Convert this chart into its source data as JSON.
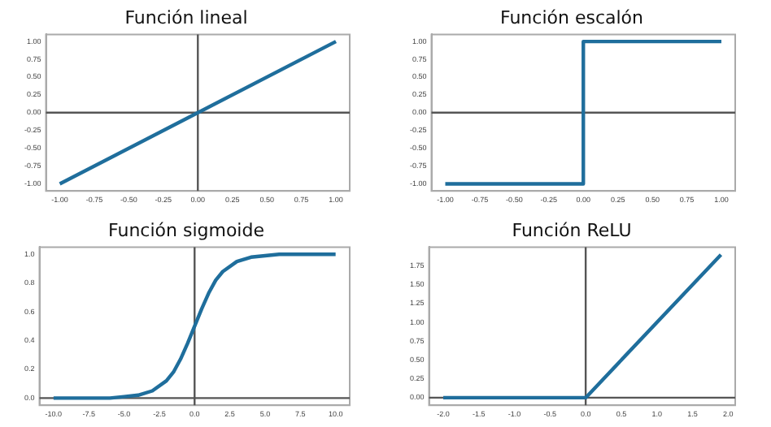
{
  "chart_data": [
    {
      "type": "line",
      "title": "Función lineal",
      "x": [
        -1,
        1
      ],
      "values": [
        -1,
        1
      ],
      "color": "#1f6e9c",
      "xlim": [
        -1.1,
        1.1
      ],
      "ylim": [
        -1.1,
        1.1
      ],
      "xticks": [
        {
          "value": -1,
          "label": "-1.00"
        },
        {
          "value": -0.75,
          "label": "-0.75"
        },
        {
          "value": -0.5,
          "label": "-0.50"
        },
        {
          "value": -0.25,
          "label": "-0.25"
        },
        {
          "value": 0,
          "label": "0.00"
        },
        {
          "value": 0.25,
          "label": "0.25"
        },
        {
          "value": 0.5,
          "label": "0.50"
        },
        {
          "value": 0.75,
          "label": "0.75"
        },
        {
          "value": 1,
          "label": "1.00"
        }
      ],
      "yticks": [
        {
          "value": -1,
          "label": "-1.00"
        },
        {
          "value": -0.75,
          "label": "-0.75"
        },
        {
          "value": -0.5,
          "label": "-0.50"
        },
        {
          "value": -0.25,
          "label": "-0.25"
        },
        {
          "value": 0,
          "label": "0.00"
        },
        {
          "value": 0.25,
          "label": "0.25"
        },
        {
          "value": 0.5,
          "label": "0.50"
        },
        {
          "value": 0.75,
          "label": "0.75"
        },
        {
          "value": 1,
          "label": "1.00"
        }
      ],
      "ref_lines": [
        {
          "axis": "x",
          "value": 0,
          "color": "#555555"
        },
        {
          "axis": "y",
          "value": 0,
          "color": "#555555"
        }
      ]
    },
    {
      "type": "line",
      "title": "Función escalón",
      "x": [
        -1,
        0,
        0,
        1
      ],
      "values": [
        -1,
        -1,
        1,
        1
      ],
      "color": "#1f6e9c",
      "xlim": [
        -1.1,
        1.1
      ],
      "ylim": [
        -1.1,
        1.1
      ],
      "xticks": [
        {
          "value": -1,
          "label": "-1.00"
        },
        {
          "value": -0.75,
          "label": "-0.75"
        },
        {
          "value": -0.5,
          "label": "-0.50"
        },
        {
          "value": -0.25,
          "label": "-0.25"
        },
        {
          "value": 0,
          "label": "0.00"
        },
        {
          "value": 0.25,
          "label": "0.25"
        },
        {
          "value": 0.5,
          "label": "0.50"
        },
        {
          "value": 0.75,
          "label": "0.75"
        },
        {
          "value": 1,
          "label": "1.00"
        }
      ],
      "yticks": [
        {
          "value": -1,
          "label": "-1.00"
        },
        {
          "value": -0.75,
          "label": "-0.75"
        },
        {
          "value": -0.5,
          "label": "-0.50"
        },
        {
          "value": -0.25,
          "label": "-0.25"
        },
        {
          "value": 0,
          "label": "0.00"
        },
        {
          "value": 0.25,
          "label": "0.25"
        },
        {
          "value": 0.5,
          "label": "0.50"
        },
        {
          "value": 0.75,
          "label": "0.75"
        },
        {
          "value": 1,
          "label": "1.00"
        }
      ],
      "ref_lines": [
        {
          "axis": "y",
          "value": 0,
          "color": "#555555"
        }
      ]
    },
    {
      "type": "line",
      "title": "Función sigmoide",
      "x": [
        -10,
        -8,
        -6,
        -5,
        -4,
        -3,
        -2,
        -1.5,
        -1,
        -0.5,
        0,
        0.5,
        1,
        1.5,
        2,
        3,
        4,
        5,
        6,
        8,
        10
      ],
      "values": [
        0,
        0,
        0,
        0.01,
        0.02,
        0.05,
        0.12,
        0.18,
        0.27,
        0.38,
        0.5,
        0.62,
        0.73,
        0.82,
        0.88,
        0.95,
        0.98,
        0.99,
        1,
        1,
        1
      ],
      "color": "#1f6e9c",
      "xlim": [
        -11,
        11
      ],
      "ylim": [
        -0.05,
        1.05
      ],
      "xticks": [
        {
          "value": -10,
          "label": "-10.0"
        },
        {
          "value": -7.5,
          "label": "-7.5"
        },
        {
          "value": -5,
          "label": "-5.0"
        },
        {
          "value": -2.5,
          "label": "-2.5"
        },
        {
          "value": 0,
          "label": "0.0"
        },
        {
          "value": 2.5,
          "label": "2.5"
        },
        {
          "value": 5,
          "label": "5.0"
        },
        {
          "value": 7.5,
          "label": "7.5"
        },
        {
          "value": 10,
          "label": "10.0"
        }
      ],
      "yticks": [
        {
          "value": 0,
          "label": "0.0"
        },
        {
          "value": 0.2,
          "label": "0.2"
        },
        {
          "value": 0.4,
          "label": "0.4"
        },
        {
          "value": 0.6,
          "label": "0.6"
        },
        {
          "value": 0.8,
          "label": "0.8"
        },
        {
          "value": 1,
          "label": "1.0"
        }
      ],
      "ref_lines": [
        {
          "axis": "x",
          "value": 0,
          "color": "#555555"
        },
        {
          "axis": "y",
          "value": 0,
          "color": "#555555"
        }
      ]
    },
    {
      "type": "line",
      "title": "Función ReLU",
      "x": [
        -2,
        0,
        1.9
      ],
      "values": [
        0,
        0,
        1.9
      ],
      "color": "#1f6e9c",
      "xlim": [
        -2.2,
        2.1
      ],
      "ylim": [
        -0.1,
        2.0
      ],
      "xticks": [
        {
          "value": -2,
          "label": "-2.0"
        },
        {
          "value": -1.5,
          "label": "-1.5"
        },
        {
          "value": -1,
          "label": "-1.0"
        },
        {
          "value": -0.5,
          "label": "-0.5"
        },
        {
          "value": 0,
          "label": "0.0"
        },
        {
          "value": 0.5,
          "label": "0.5"
        },
        {
          "value": 1,
          "label": "1.0"
        },
        {
          "value": 1.5,
          "label": "1.5"
        },
        {
          "value": 2,
          "label": "2.0"
        }
      ],
      "yticks": [
        {
          "value": 0,
          "label": "0.00"
        },
        {
          "value": 0.25,
          "label": "0.25"
        },
        {
          "value": 0.5,
          "label": "0.50"
        },
        {
          "value": 0.75,
          "label": "0.75"
        },
        {
          "value": 1,
          "label": "1.00"
        },
        {
          "value": 1.25,
          "label": "1.25"
        },
        {
          "value": 1.5,
          "label": "1.50"
        },
        {
          "value": 1.75,
          "label": "1.75"
        }
      ],
      "ref_lines": [
        {
          "axis": "x",
          "value": 0,
          "color": "#555555"
        },
        {
          "axis": "y",
          "value": 0,
          "color": "#555555"
        }
      ]
    }
  ]
}
